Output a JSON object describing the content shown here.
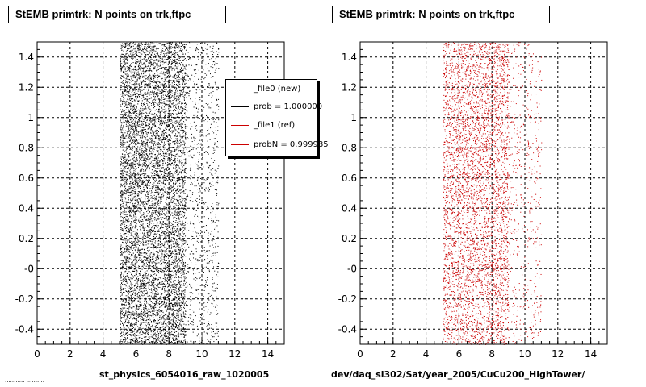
{
  "canvas": {
    "footer_text": "...........  ..........",
    "colors": {
      "new": "#000000",
      "ref": "#cc0000",
      "grid": "#000000",
      "background": "#ffffff"
    }
  },
  "left_panel": {
    "title": "StEMB primtrk: N points on trk,ftpc",
    "xlabel": "st_physics_6054016_raw_1020005",
    "legend": {
      "entries": [
        {
          "label": "_file0 (new)",
          "color": "#000000"
        },
        {
          "label": "prob = 1.000000",
          "color": "#000000"
        },
        {
          "label": "_file1 (ref)",
          "color": "#cc0000"
        },
        {
          "label": "probN = 0.999985",
          "color": "#cc0000"
        }
      ]
    }
  },
  "right_panel": {
    "title": "StEMB primtrk: N points on trk,ftpc",
    "xlabel": "dev/daq_sl302/Sat/year_2005/CuCu200_HighTower/"
  },
  "chart_data": [
    {
      "type": "scatter",
      "title": "StEMB primtrk: N points on trk,ftpc",
      "xlabel": "st_physics_6054016_raw_1020005",
      "ylabel": "",
      "xlim": [
        0,
        15
      ],
      "ylim": [
        -0.5,
        1.5
      ],
      "xticks": [
        0,
        2,
        4,
        6,
        8,
        10,
        12,
        14
      ],
      "xtick_labels": [
        "0",
        "2",
        "4",
        "6",
        "8",
        "10",
        "12",
        "14"
      ],
      "yticks": [
        -0.4,
        -0.2,
        0,
        0.2,
        0.4,
        0.6,
        0.8,
        1,
        1.2,
        1.4
      ],
      "ytick_labels": [
        "-0.4",
        "-0.2",
        "-0",
        "0.2",
        "0.4",
        "0.6",
        "0.8",
        "1",
        "1.2",
        "1.4"
      ],
      "grid": true,
      "legend_position": "top-right",
      "series": [
        {
          "name": "_file0 (new)",
          "color": "#000000",
          "point_cloud": {
            "x_range": [
              5,
              11
            ],
            "y_range": [
              -0.5,
              1.5
            ],
            "dense_x_range": [
              5,
              9
            ],
            "points": 9000
          }
        }
      ]
    },
    {
      "type": "scatter",
      "title": "StEMB primtrk: N points on trk,ftpc",
      "xlabel": "dev/daq_sl302/Sat/year_2005/CuCu200_HighTower/",
      "ylabel": "",
      "xlim": [
        0,
        15
      ],
      "ylim": [
        -0.5,
        1.5
      ],
      "xticks": [
        0,
        2,
        4,
        6,
        8,
        10,
        12,
        14
      ],
      "xtick_labels": [
        "0",
        "2",
        "4",
        "6",
        "8",
        "10",
        "12",
        "14"
      ],
      "yticks": [
        -0.4,
        -0.2,
        0,
        0.2,
        0.4,
        0.6,
        0.8,
        1,
        1.2,
        1.4
      ],
      "ytick_labels": [
        "-0.4",
        "-0.2",
        "-0",
        "0.2",
        "0.4",
        "0.6",
        "0.8",
        "1",
        "1.2",
        "1.4"
      ],
      "grid": true,
      "series": [
        {
          "name": "_file1 (ref)",
          "color": "#cc0000",
          "point_cloud": {
            "x_range": [
              5,
              11
            ],
            "y_range": [
              -0.5,
              1.5
            ],
            "dense_x_range": [
              5,
              9
            ],
            "points": 5000
          }
        }
      ]
    }
  ]
}
